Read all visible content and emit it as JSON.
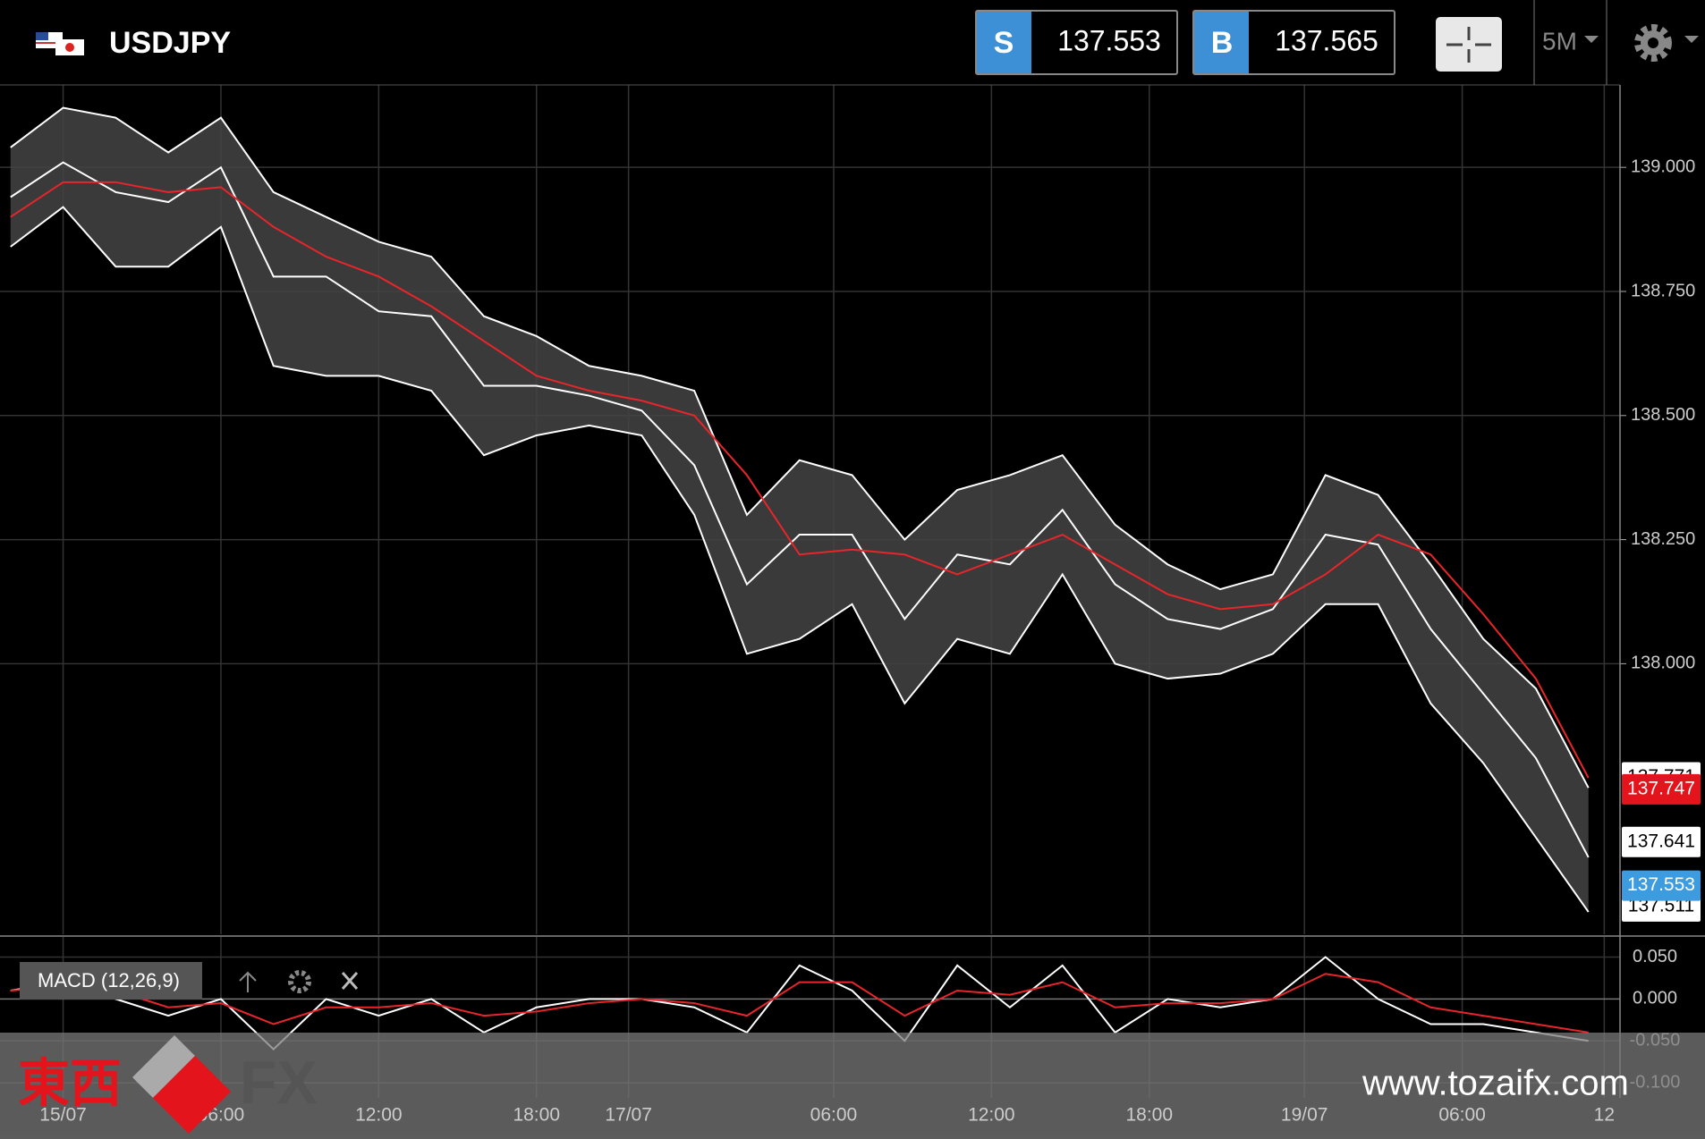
{
  "header": {
    "symbol": "USDJPY",
    "sell_label": "S",
    "sell_price": 137.553,
    "buy_label": "B",
    "buy_price": 137.565,
    "timeframe": "5M"
  },
  "chart_data": {
    "type": "line",
    "x": [
      -2,
      0,
      2,
      4,
      6,
      8,
      10,
      12,
      14,
      16,
      18,
      20,
      22,
      24,
      26,
      28,
      30,
      32,
      34,
      36,
      38,
      40,
      42,
      44,
      46,
      48,
      50,
      52,
      54,
      56,
      58
    ],
    "series": [
      {
        "name": "upper",
        "color": "#ffffff",
        "values": [
          139.04,
          139.12,
          139.1,
          139.03,
          139.1,
          138.95,
          138.9,
          138.85,
          138.82,
          138.7,
          138.66,
          138.6,
          138.58,
          138.55,
          138.3,
          138.41,
          138.38,
          138.25,
          138.35,
          138.38,
          138.42,
          138.28,
          138.2,
          138.15,
          138.18,
          138.38,
          138.34,
          138.2,
          138.05,
          137.95,
          137.75
        ]
      },
      {
        "name": "middle",
        "color": "#ffffff",
        "values": [
          138.94,
          139.01,
          138.95,
          138.93,
          139.0,
          138.78,
          138.78,
          138.71,
          138.7,
          138.56,
          138.56,
          138.54,
          138.51,
          138.4,
          138.16,
          138.26,
          138.26,
          138.09,
          138.22,
          138.2,
          138.31,
          138.16,
          138.09,
          138.07,
          138.11,
          138.26,
          138.24,
          138.07,
          137.94,
          137.81,
          137.61
        ]
      },
      {
        "name": "lower",
        "color": "#ffffff",
        "values": [
          138.84,
          138.92,
          138.8,
          138.8,
          138.88,
          138.6,
          138.58,
          138.58,
          138.55,
          138.42,
          138.46,
          138.48,
          138.46,
          138.3,
          138.02,
          138.05,
          138.12,
          137.92,
          138.05,
          138.02,
          138.18,
          138.0,
          137.97,
          137.98,
          138.02,
          138.12,
          138.12,
          137.92,
          137.8,
          137.65,
          137.5
        ]
      },
      {
        "name": "ma",
        "color": "#e8252a",
        "values": [
          138.9,
          138.97,
          138.97,
          138.95,
          138.96,
          138.88,
          138.82,
          138.78,
          138.72,
          138.65,
          138.58,
          138.55,
          138.53,
          138.5,
          138.38,
          138.22,
          138.23,
          138.22,
          138.18,
          138.22,
          138.26,
          138.2,
          138.14,
          138.11,
          138.12,
          138.18,
          138.26,
          138.22,
          138.1,
          137.97,
          137.77
        ]
      }
    ],
    "xlim": [
      -2.4,
      59.2
    ],
    "xticks": [
      {
        "value": 0,
        "label": "15/07"
      },
      {
        "value": 6,
        "label": "06:00"
      },
      {
        "value": 12,
        "label": "12:00"
      },
      {
        "value": 18,
        "label": "18:00"
      },
      {
        "value": 21.5,
        "label": "17/07"
      },
      {
        "value": 29.3,
        "label": "06:00"
      },
      {
        "value": 35.3,
        "label": "12:00"
      },
      {
        "value": 41.3,
        "label": "18:00"
      },
      {
        "value": 47.2,
        "label": "19/07"
      },
      {
        "value": 53.2,
        "label": "06:00"
      },
      {
        "value": 58.6,
        "label": "12"
      }
    ],
    "ylim": [
      137.455,
      139.166
    ],
    "yticks": [
      {
        "value": 138,
        "label": "138.000"
      },
      {
        "value": 138.25,
        "label": "138.250"
      },
      {
        "value": 138.5,
        "label": "138.500"
      },
      {
        "value": 138.75,
        "label": "138.750"
      },
      {
        "value": 139,
        "label": "139.000"
      }
    ],
    "price_tags": [
      {
        "value": 137.771,
        "color": "#ffffff",
        "text_color": "#000000"
      },
      {
        "value": 137.747,
        "color": "#e3141b",
        "text_color": "#ffffff"
      },
      {
        "value": 137.641,
        "color": "#ffffff",
        "text_color": "#000000"
      },
      {
        "value": 137.511,
        "color": "#ffffff",
        "text_color": "#000000"
      },
      {
        "value": 137.553,
        "color": "#3d9be0",
        "text_color": "#ffffff"
      }
    ],
    "grid": true
  },
  "indicator": {
    "title": "MACD (12,26,9)",
    "series": [
      {
        "name": "macd",
        "color": "#ffffff",
        "values": [
          0.01,
          0.02,
          0.0,
          -0.02,
          0.0,
          -0.06,
          0.0,
          -0.02,
          0.0,
          -0.04,
          -0.01,
          0.0,
          0.0,
          -0.01,
          -0.04,
          0.04,
          0.01,
          -0.05,
          0.04,
          -0.01,
          0.04,
          -0.04,
          0.0,
          -0.01,
          0.0,
          0.05,
          0.0,
          -0.03,
          -0.03,
          -0.04,
          -0.05
        ]
      },
      {
        "name": "signal",
        "color": "#e8252a",
        "values": [
          0.01,
          0.015,
          0.01,
          -0.01,
          -0.005,
          -0.03,
          -0.01,
          -0.01,
          -0.005,
          -0.02,
          -0.015,
          -0.005,
          0.0,
          -0.005,
          -0.02,
          0.02,
          0.02,
          -0.02,
          0.01,
          0.005,
          0.02,
          -0.01,
          -0.005,
          -0.005,
          0.0,
          0.03,
          0.02,
          -0.01,
          -0.02,
          -0.03,
          -0.04
        ]
      }
    ],
    "ylim": [
      -0.118,
      0.074
    ],
    "yticks": [
      {
        "value": 0.05,
        "label": "0.050"
      },
      {
        "value": 0,
        "label": "0.000"
      },
      {
        "value": -0.05,
        "label": "-0.050"
      },
      {
        "value": -0.1,
        "label": "-0.100"
      }
    ]
  },
  "watermark": {
    "brand_cjk": "東西",
    "brand_latin": "FX",
    "url": "www.tozaifx.com"
  }
}
